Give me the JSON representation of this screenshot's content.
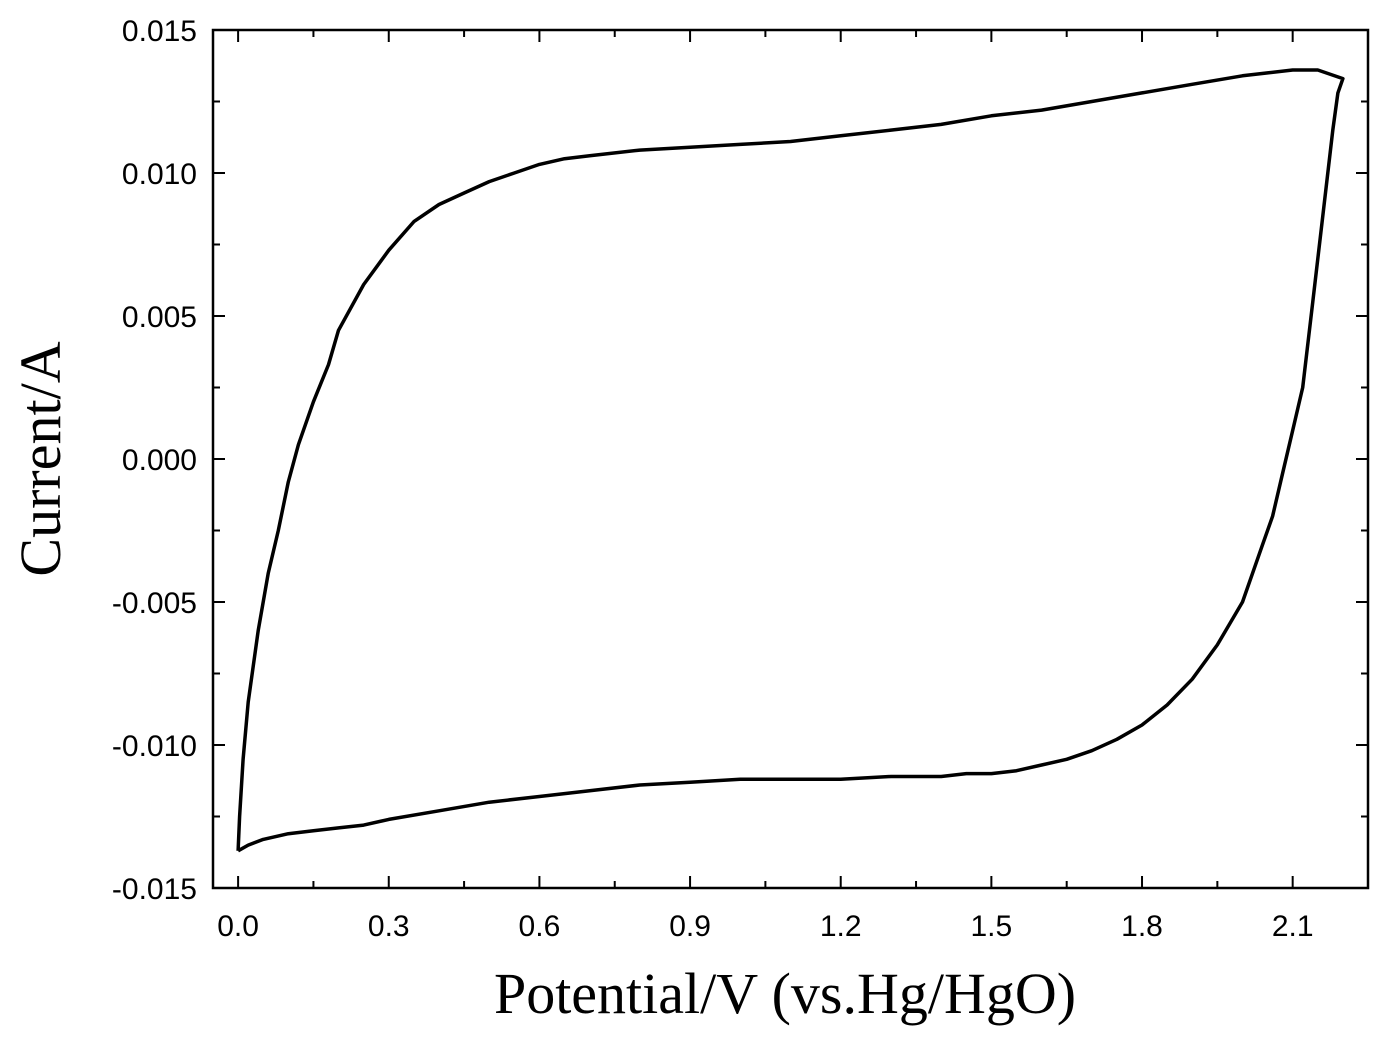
{
  "chart_data": {
    "type": "line",
    "title": "",
    "xlabel": "Potential/V (vs.Hg/HgO)",
    "ylabel": "Current/A",
    "xlim": [
      -0.05,
      2.25
    ],
    "ylim": [
      -0.015,
      0.015
    ],
    "xticks": [
      0.0,
      0.3,
      0.6,
      0.9,
      1.2,
      1.5,
      1.8,
      2.1
    ],
    "xtick_labels": [
      "0.0",
      "0.3",
      "0.6",
      "0.9",
      "1.2",
      "1.5",
      "1.8",
      "2.1"
    ],
    "yticks": [
      0.015,
      0.01,
      0.005,
      0.0,
      -0.005,
      -0.01,
      -0.015
    ],
    "ytick_labels": [
      "0.015",
      "0.010",
      "0.005",
      "0.000",
      "-0.005",
      "-0.010",
      "-0.015"
    ],
    "grid": false,
    "legend": "none",
    "line_color": "#000000",
    "series": [
      {
        "x": [
          0.0,
          0.003,
          0.01,
          0.02,
          0.04,
          0.06,
          0.08,
          0.1,
          0.12,
          0.15,
          0.18,
          0.2,
          0.25,
          0.3,
          0.35,
          0.4,
          0.45,
          0.5,
          0.55,
          0.6,
          0.65,
          0.7,
          0.8,
          0.9,
          1.0,
          1.1,
          1.2,
          1.3,
          1.4,
          1.5,
          1.6,
          1.7,
          1.8,
          1.9,
          2.0,
          2.05,
          2.1,
          2.15,
          2.2,
          2.19,
          2.18,
          2.16,
          2.14,
          2.12,
          2.1,
          2.08,
          2.06,
          2.04,
          2.02,
          2.0,
          1.95,
          1.9,
          1.85,
          1.8,
          1.75,
          1.7,
          1.65,
          1.6,
          1.55,
          1.5,
          1.45,
          1.4,
          1.3,
          1.2,
          1.1,
          1.0,
          0.9,
          0.8,
          0.7,
          0.6,
          0.5,
          0.4,
          0.3,
          0.25,
          0.2,
          0.15,
          0.1,
          0.05,
          0.02,
          0.0
        ],
        "y": [
          -0.0137,
          -0.0125,
          -0.0105,
          -0.0085,
          -0.006,
          -0.004,
          -0.0025,
          -0.0008,
          0.0005,
          0.002,
          0.0033,
          0.0045,
          0.0061,
          0.0073,
          0.0083,
          0.0089,
          0.0093,
          0.0097,
          0.01,
          0.0103,
          0.0105,
          0.0106,
          0.0108,
          0.0109,
          0.011,
          0.0111,
          0.0113,
          0.0115,
          0.0117,
          0.012,
          0.0122,
          0.0125,
          0.0128,
          0.0131,
          0.0134,
          0.0135,
          0.0136,
          0.0136,
          0.0133,
          0.0128,
          0.0115,
          0.0085,
          0.0055,
          0.0025,
          0.001,
          -0.0005,
          -0.002,
          -0.003,
          -0.004,
          -0.005,
          -0.0065,
          -0.0077,
          -0.0086,
          -0.0093,
          -0.0098,
          -0.0102,
          -0.0105,
          -0.0107,
          -0.0109,
          -0.011,
          -0.011,
          -0.0111,
          -0.0111,
          -0.0112,
          -0.0112,
          -0.0112,
          -0.0113,
          -0.0114,
          -0.0116,
          -0.0118,
          -0.012,
          -0.0123,
          -0.0126,
          -0.0128,
          -0.0129,
          -0.013,
          -0.0131,
          -0.0133,
          -0.0135,
          -0.0137
        ]
      }
    ]
  }
}
